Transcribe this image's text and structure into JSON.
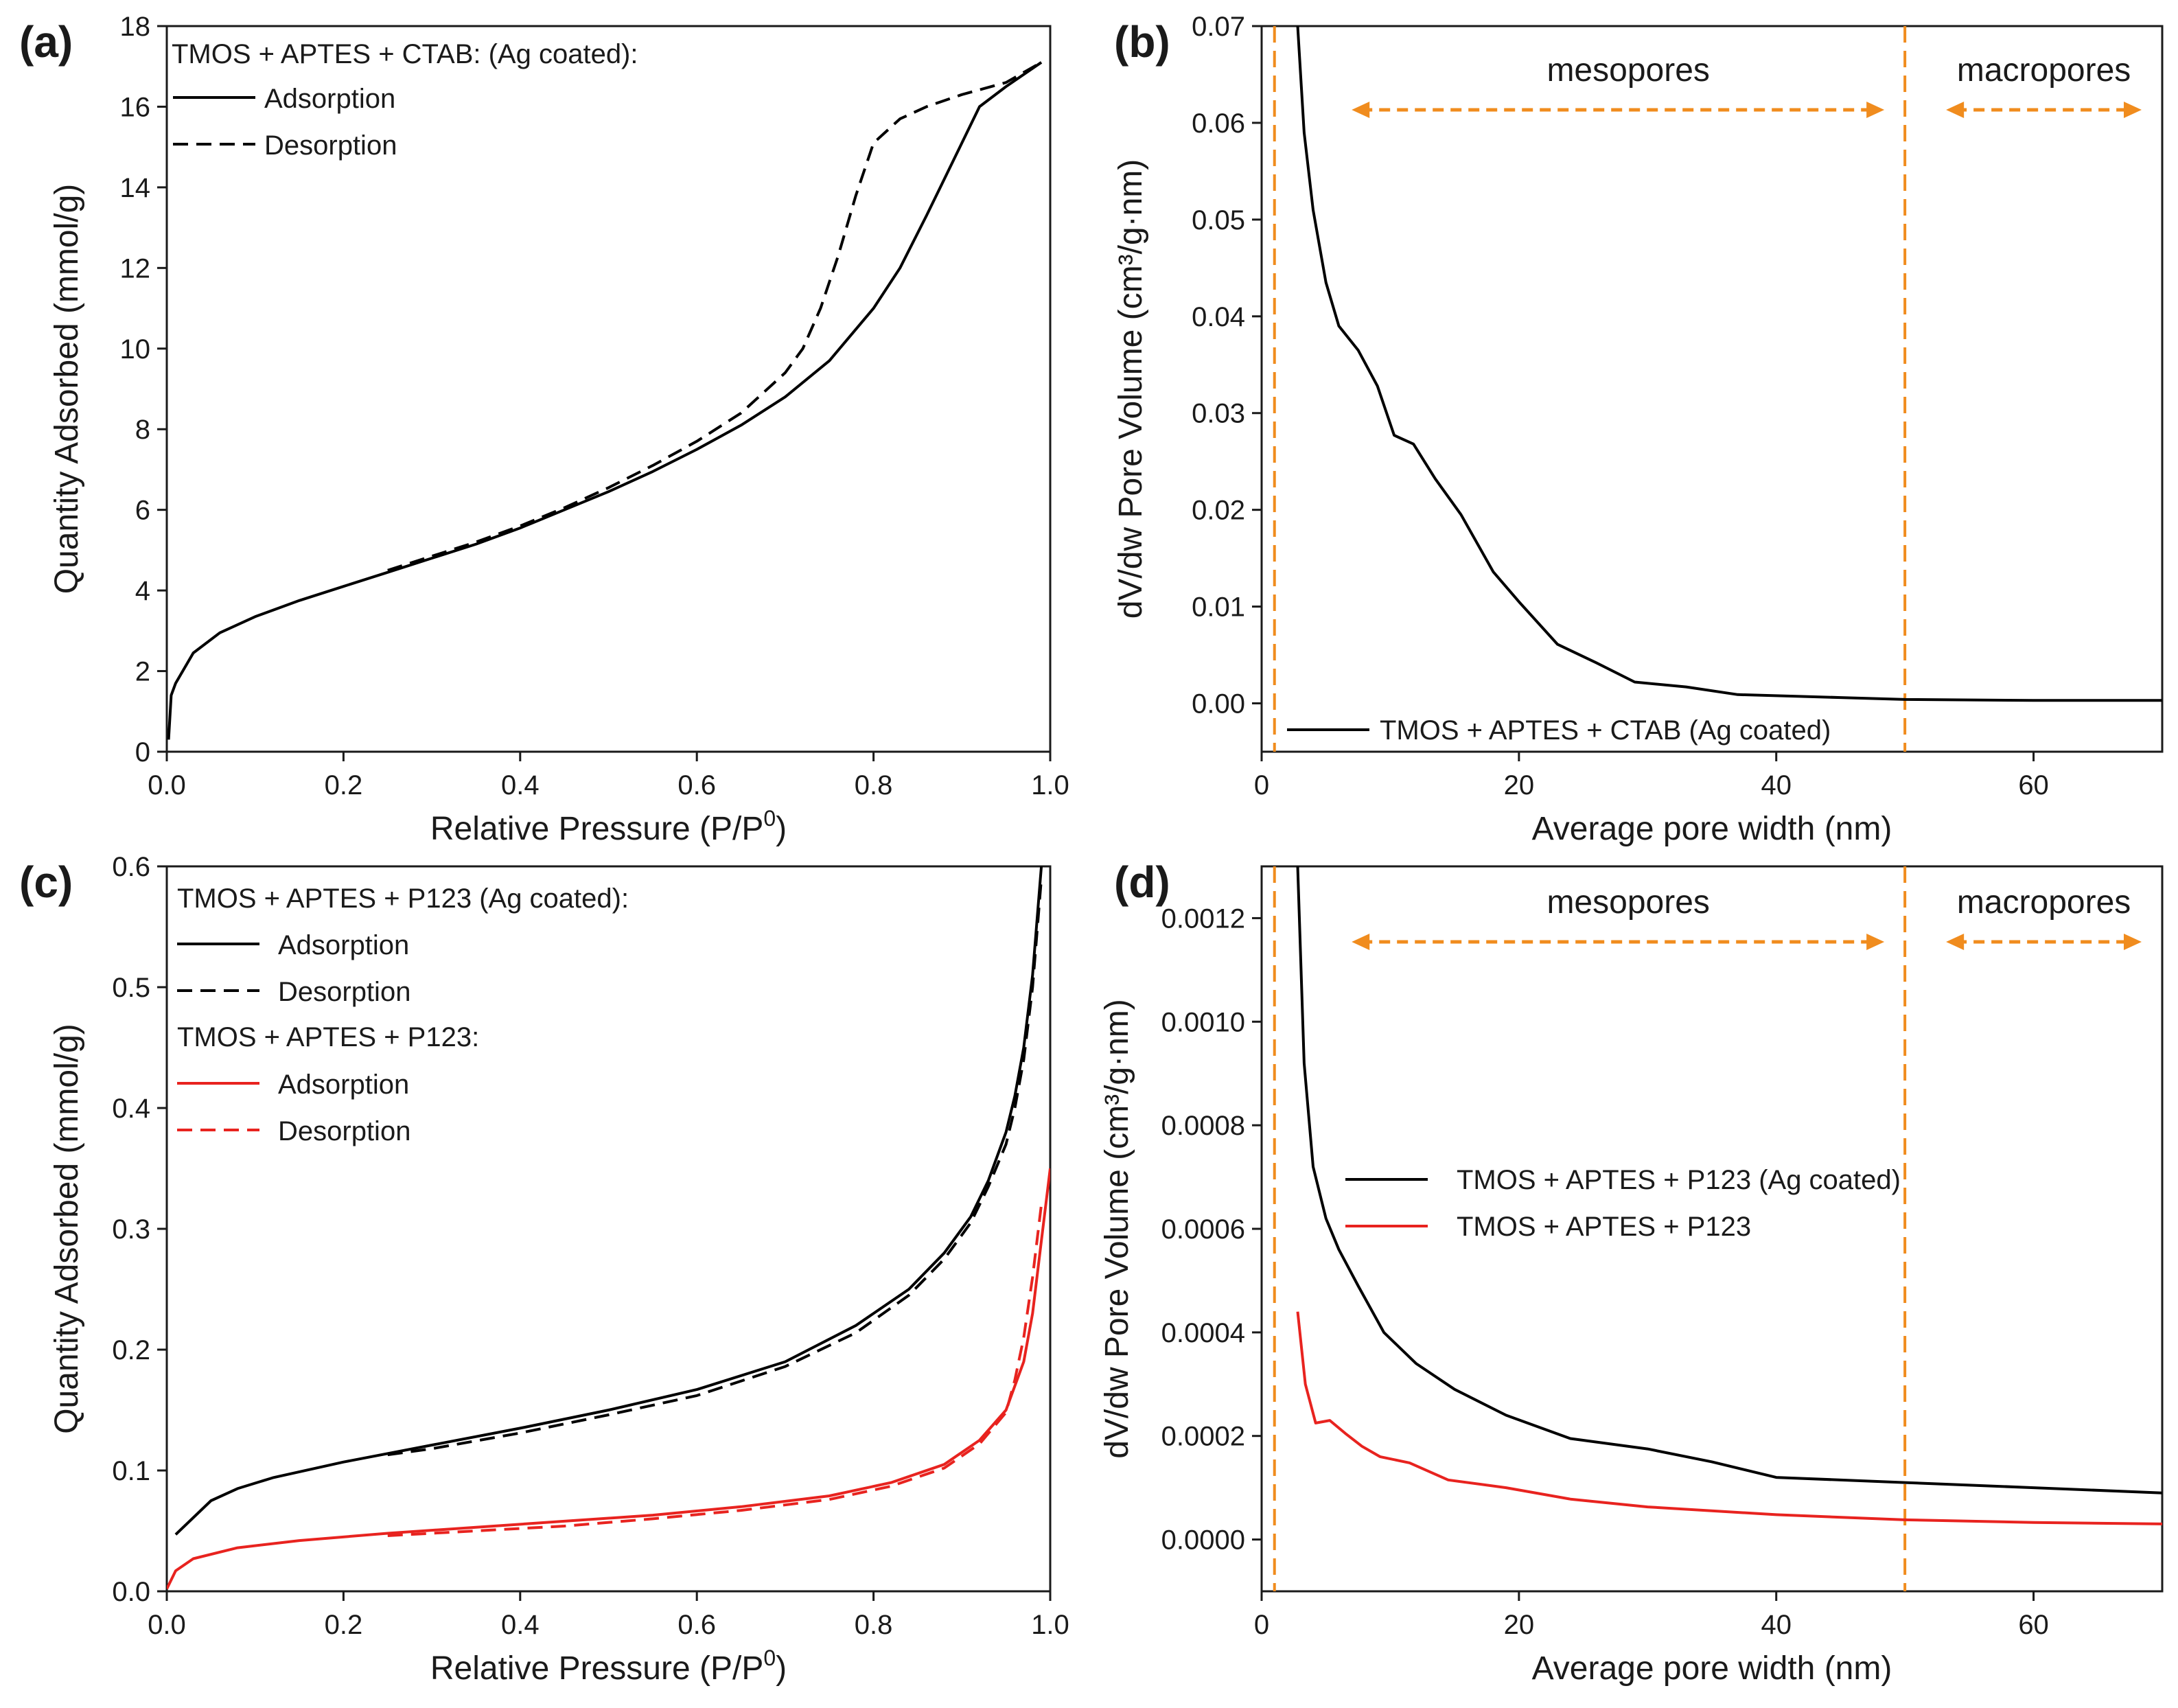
{
  "figure": {
    "colors": {
      "black": "#000000",
      "red": "#e8231f",
      "orange": "#f08c1e",
      "ink": "#1a1a1a"
    }
  },
  "chart_data": [
    {
      "id": "a",
      "panel_label": "(a)",
      "type": "line",
      "xlabel": "Relative Pressure (P/P",
      "xlabel_sup": "0",
      "xlabel_tail": ")",
      "ylabel": "Quantity Adsorbed (mmol/g)",
      "xlim": [
        0,
        1.0
      ],
      "ylim": [
        0,
        18
      ],
      "xticks": [
        0.0,
        0.2,
        0.4,
        0.6,
        0.8,
        1.0
      ],
      "xtick_labels": [
        "0.0",
        "0.2",
        "0.4",
        "0.6",
        "0.8",
        "1.0"
      ],
      "yticks": [
        0,
        2,
        4,
        6,
        8,
        10,
        12,
        14,
        16,
        18
      ],
      "ytick_labels": [
        "0",
        "2",
        "4",
        "6",
        "8",
        "10",
        "12",
        "14",
        "16",
        "18"
      ],
      "legend_title": "TMOS + APTES + CTAB: (Ag coated):",
      "legend_location": "top-left",
      "series": [
        {
          "name": "Adsorption",
          "color": "#000000",
          "dash": "solid",
          "x": [
            0.002,
            0.005,
            0.01,
            0.03,
            0.06,
            0.1,
            0.15,
            0.2,
            0.25,
            0.3,
            0.35,
            0.4,
            0.45,
            0.5,
            0.55,
            0.6,
            0.65,
            0.7,
            0.75,
            0.8,
            0.83,
            0.86,
            0.88,
            0.9,
            0.92,
            0.95,
            0.99
          ],
          "y": [
            0.3,
            1.4,
            1.7,
            2.45,
            2.95,
            3.35,
            3.75,
            4.1,
            4.45,
            4.8,
            5.15,
            5.55,
            6.0,
            6.45,
            6.95,
            7.5,
            8.1,
            8.8,
            9.7,
            11.0,
            12.0,
            13.3,
            14.2,
            15.1,
            16.0,
            16.5,
            17.1
          ]
        },
        {
          "name": "Desorption",
          "color": "#000000",
          "dash": "dashed",
          "x": [
            0.25,
            0.3,
            0.35,
            0.4,
            0.45,
            0.5,
            0.55,
            0.6,
            0.65,
            0.7,
            0.72,
            0.74,
            0.76,
            0.78,
            0.8,
            0.83,
            0.86,
            0.9,
            0.95,
            0.99
          ],
          "y": [
            4.5,
            4.85,
            5.2,
            5.6,
            6.05,
            6.55,
            7.1,
            7.7,
            8.4,
            9.4,
            10.0,
            11.0,
            12.3,
            13.8,
            15.1,
            15.7,
            16.0,
            16.3,
            16.6,
            17.1
          ]
        }
      ]
    },
    {
      "id": "b",
      "panel_label": "(b)",
      "type": "line",
      "xlabel": "Average pore width (nm)",
      "ylabel": "dV/dw Pore Volume (cm³/g·nm)",
      "xlim": [
        0,
        70
      ],
      "ylim": [
        -0.005,
        0.07
      ],
      "xticks": [
        0,
        20,
        40,
        60
      ],
      "xtick_labels": [
        "0",
        "20",
        "40",
        "60"
      ],
      "yticks": [
        0.0,
        0.01,
        0.02,
        0.03,
        0.04,
        0.05,
        0.06,
        0.07
      ],
      "ytick_labels": [
        "0.00",
        "0.01",
        "0.02",
        "0.03",
        "0.04",
        "0.05",
        "0.06",
        "0.07"
      ],
      "legend_location": "bottom-center",
      "series": [
        {
          "name": "TMOS + APTES + CTAB (Ag coated)",
          "color": "#000000",
          "dash": "solid",
          "x": [
            2.8,
            3.3,
            4.0,
            5.0,
            6.0,
            7.5,
            9.0,
            10.3,
            11.8,
            13.5,
            15.5,
            18.0,
            20.0,
            23.0,
            26.0,
            29.0,
            33.0,
            37.0,
            45.0,
            50.0,
            60.0,
            70.0
          ],
          "y": [
            0.07,
            0.059,
            0.051,
            0.0435,
            0.039,
            0.0365,
            0.0328,
            0.0277,
            0.0268,
            0.0232,
            0.0195,
            0.0136,
            0.0105,
            0.0061,
            0.0042,
            0.0022,
            0.0017,
            0.0009,
            0.0006,
            0.0004,
            0.0003,
            0.0003
          ]
        }
      ],
      "vlines": [
        1,
        50
      ],
      "annotations": {
        "meso": "mesopores",
        "macro": "macropores"
      }
    },
    {
      "id": "c",
      "panel_label": "(c)",
      "type": "line",
      "xlabel": "Relative Pressure (P/P",
      "xlabel_sup": "0",
      "xlabel_tail": ")",
      "ylabel": "Quantity Adsorbed (mmol/g)",
      "xlim": [
        0,
        1.0
      ],
      "ylim": [
        0,
        0.6
      ],
      "xticks": [
        0.0,
        0.2,
        0.4,
        0.6,
        0.8,
        1.0
      ],
      "xtick_labels": [
        "0.0",
        "0.2",
        "0.4",
        "0.6",
        "0.8",
        "1.0"
      ],
      "yticks": [
        0.0,
        0.1,
        0.2,
        0.3,
        0.4,
        0.5,
        0.6
      ],
      "ytick_labels": [
        "0.0",
        "0.1",
        "0.2",
        "0.3",
        "0.4",
        "0.5",
        "0.6"
      ],
      "legend_title": "TMOS + APTES + P123 (Ag coated):",
      "legend_title_2": "TMOS + APTES + P123:",
      "legend_location": "top-left",
      "series": [
        {
          "name": "Adsorption",
          "group": 1,
          "color": "#000000",
          "dash": "solid",
          "x": [
            0.01,
            0.05,
            0.08,
            0.12,
            0.2,
            0.3,
            0.4,
            0.5,
            0.6,
            0.7,
            0.78,
            0.84,
            0.88,
            0.91,
            0.93,
            0.95,
            0.96,
            0.97,
            0.98,
            0.99
          ],
          "y": [
            0.047,
            0.075,
            0.085,
            0.094,
            0.107,
            0.121,
            0.135,
            0.15,
            0.167,
            0.19,
            0.22,
            0.25,
            0.28,
            0.31,
            0.34,
            0.38,
            0.41,
            0.45,
            0.51,
            0.6
          ]
        },
        {
          "name": "Desorption",
          "group": 1,
          "color": "#000000",
          "dash": "dashed",
          "x": [
            0.25,
            0.3,
            0.4,
            0.5,
            0.6,
            0.7,
            0.78,
            0.84,
            0.88,
            0.91,
            0.93,
            0.95,
            0.96,
            0.97,
            0.98,
            0.99
          ],
          "y": [
            0.113,
            0.118,
            0.131,
            0.146,
            0.162,
            0.186,
            0.214,
            0.245,
            0.275,
            0.305,
            0.335,
            0.37,
            0.4,
            0.44,
            0.5,
            0.59
          ]
        },
        {
          "name": "Adsorption",
          "group": 2,
          "color": "#e8231f",
          "dash": "solid",
          "x": [
            0.0,
            0.01,
            0.03,
            0.08,
            0.15,
            0.25,
            0.35,
            0.45,
            0.55,
            0.65,
            0.75,
            0.82,
            0.88,
            0.92,
            0.95,
            0.97,
            0.98,
            0.99,
            1.0
          ],
          "y": [
            0.002,
            0.017,
            0.027,
            0.036,
            0.042,
            0.048,
            0.053,
            0.058,
            0.063,
            0.07,
            0.079,
            0.09,
            0.105,
            0.125,
            0.15,
            0.19,
            0.23,
            0.29,
            0.35
          ]
        },
        {
          "name": "Desorption",
          "group": 2,
          "color": "#e8231f",
          "dash": "dashed",
          "x": [
            0.25,
            0.35,
            0.45,
            0.55,
            0.65,
            0.75,
            0.82,
            0.88,
            0.92,
            0.95,
            0.96,
            0.97,
            0.98,
            0.99
          ],
          "y": [
            0.046,
            0.05,
            0.054,
            0.06,
            0.067,
            0.076,
            0.087,
            0.102,
            0.122,
            0.148,
            0.175,
            0.21,
            0.26,
            0.32
          ]
        }
      ]
    },
    {
      "id": "d",
      "panel_label": "(d)",
      "type": "line",
      "xlabel": "Average pore width (nm)",
      "ylabel": "dV/dw Pore Volume (cm³/g·nm)",
      "xlim": [
        0,
        70
      ],
      "ylim": [
        -0.0001,
        0.0013
      ],
      "xticks": [
        0,
        20,
        40,
        60
      ],
      "xtick_labels": [
        "0",
        "20",
        "40",
        "60"
      ],
      "yticks": [
        0.0,
        0.0002,
        0.0004,
        0.0006,
        0.0008,
        0.001,
        0.0012
      ],
      "ytick_labels": [
        "0.0000",
        "0.0002",
        "0.0004",
        "0.0006",
        "0.0008",
        "0.0010",
        "0.0012"
      ],
      "legend_location": "center-right",
      "series": [
        {
          "name": "TMOS + APTES + P123 (Ag coated)",
          "color": "#000000",
          "dash": "solid",
          "x": [
            2.8,
            3.3,
            4.0,
            5.0,
            6.0,
            7.5,
            9.5,
            12.0,
            15.0,
            19.0,
            24.0,
            30.0,
            35.0,
            40.0,
            50.0,
            60.0,
            70.0
          ],
          "y": [
            0.0013,
            0.00092,
            0.00072,
            0.00062,
            0.00056,
            0.00049,
            0.0004,
            0.00034,
            0.00029,
            0.00024,
            0.000195,
            0.000175,
            0.00015,
            0.00012,
            0.00011,
            0.0001,
            9e-05
          ]
        },
        {
          "name": "TMOS + APTES + P123",
          "color": "#e8231f",
          "dash": "solid",
          "x": [
            2.8,
            3.4,
            4.2,
            5.3,
            6.5,
            7.8,
            9.2,
            11.5,
            14.5,
            19.0,
            24.0,
            30.0,
            40.0,
            50.0,
            60.0,
            70.0
          ],
          "y": [
            0.00044,
            0.0003,
            0.000225,
            0.00023,
            0.000205,
            0.00018,
            0.00016,
            0.000148,
            0.000115,
            0.0001,
            7.8e-05,
            6.3e-05,
            4.8e-05,
            3.8e-05,
            3.3e-05,
            3e-05
          ]
        }
      ],
      "vlines": [
        1,
        50
      ],
      "annotations": {
        "meso": "mesopores",
        "macro": "macropores"
      }
    }
  ]
}
